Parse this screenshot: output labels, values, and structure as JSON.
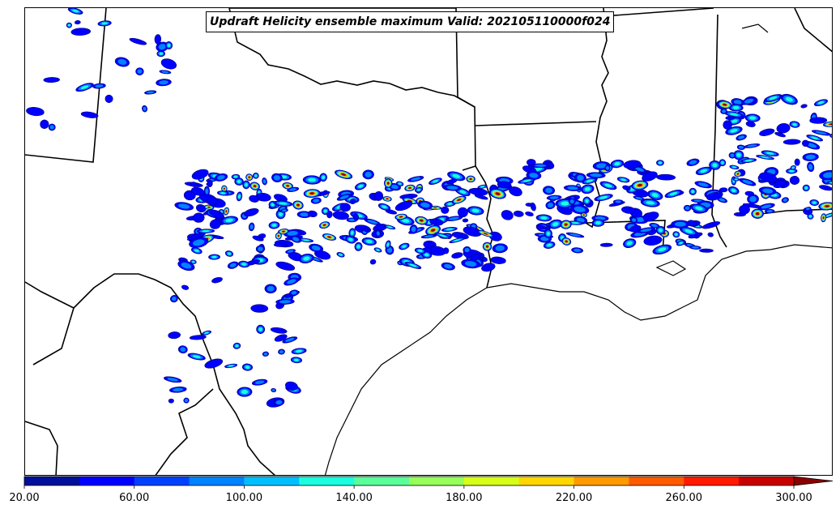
{
  "title": "Updraft Helicity ensemble maximum Valid: 202105110000f024",
  "colorbar": {
    "min": 20,
    "max": 300,
    "step": 20,
    "extend": "max",
    "tick_labels": [
      "20.00",
      "60.00",
      "100.00",
      "140.00",
      "180.00",
      "220.00",
      "260.00",
      "300.00"
    ],
    "colors": [
      "#000f9a",
      "#0000ff",
      "#0041ff",
      "#0083ff",
      "#00bfff",
      "#1affdf",
      "#5aff9a",
      "#96ff5a",
      "#d6ff1a",
      "#ffd600",
      "#ff9a00",
      "#ff5a00",
      "#ff1a00",
      "#c80000",
      "#8a0000"
    ]
  },
  "map": {
    "projection": "regional",
    "region": "Southern Plains and Gulf Coast",
    "field": "Updraft Helicity",
    "shading": "filled contours of ensemble maximum",
    "features": [
      "state-borders",
      "coastline",
      "lakes",
      "rivers"
    ]
  }
}
